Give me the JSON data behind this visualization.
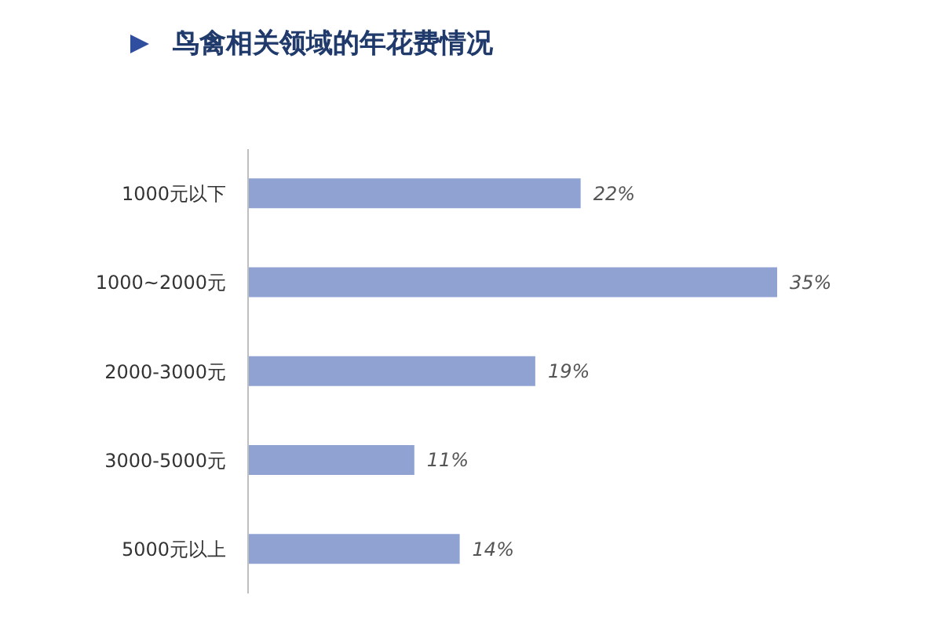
{
  "chart_data": {
    "type": "bar",
    "orientation": "horizontal",
    "title": "鸟禽相关领域的年花费情况",
    "categories": [
      "1000元以下",
      "1000~2000元",
      "2000-3000元",
      "3000-5000元",
      "5000元以上"
    ],
    "values": [
      22,
      35,
      19,
      11,
      14
    ],
    "value_labels": [
      "22%",
      "35%",
      "19%",
      "11%",
      "14%"
    ],
    "color": "#8fa2d2",
    "grid": false,
    "legend": false
  }
}
